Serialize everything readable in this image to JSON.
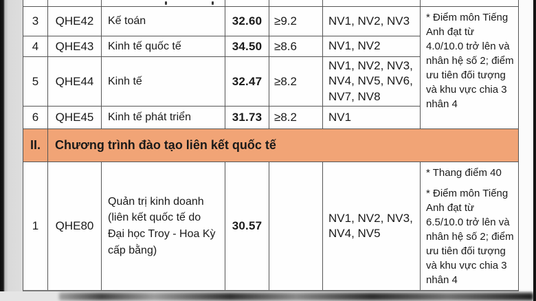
{
  "colors": {
    "orange": "#f1a476",
    "border": "#555555",
    "text": "#1a1a1a"
  },
  "table": {
    "section1": {
      "rows": [
        {
          "stt": "3",
          "code": "QHE42",
          "major": "Kế toán",
          "score": "32.60",
          "condition": "≥9.2",
          "nv": "NV1, NV2, NV3"
        },
        {
          "stt": "4",
          "code": "QHE43",
          "major": "Kinh tế quốc tế",
          "score": "34.50",
          "condition": "≥8.6",
          "nv": "NV1, NV2"
        },
        {
          "stt": "5",
          "code": "QHE44",
          "major": "Kinh tế",
          "score": "32.47",
          "condition": "≥8.2",
          "nv": "NV1, NV2, NV3,\nNV4, NV5, NV6,\nNV7, NV8"
        },
        {
          "stt": "6",
          "code": "QHE45",
          "major": "Kinh tế phát triển",
          "score": "31.73",
          "condition": "≥8.2",
          "nv": "NV1"
        }
      ],
      "note": "* Điểm môn Tiếng Anh đạt từ 4.0/10.0 trở lên và nhân hệ số 2; điểm ưu tiên đối tượng và khu vực chia 3 nhân 4"
    },
    "section2": {
      "numeral": "II.",
      "title": "Chương trình đào tạo liên kết quốc tế",
      "rows": [
        {
          "stt": "1",
          "code": "QHE80",
          "major": "Quản trị kinh doanh\n(liên kết quốc tế do\nĐại học Troy - Hoa Kỳ\ncấp bằng)",
          "score": "30.57",
          "condition": "",
          "nv": "NV1, NV2, NV3,\nNV4, NV5",
          "note_line1": "* Thang điểm 40",
          "note_line2": "* Điểm môn Tiếng Anh đạt từ 6.5/10.0 trở lên và nhân hệ số 2; điểm ưu tiên đối tượng và khu vực chia 3 nhân 4"
        }
      ]
    }
  }
}
